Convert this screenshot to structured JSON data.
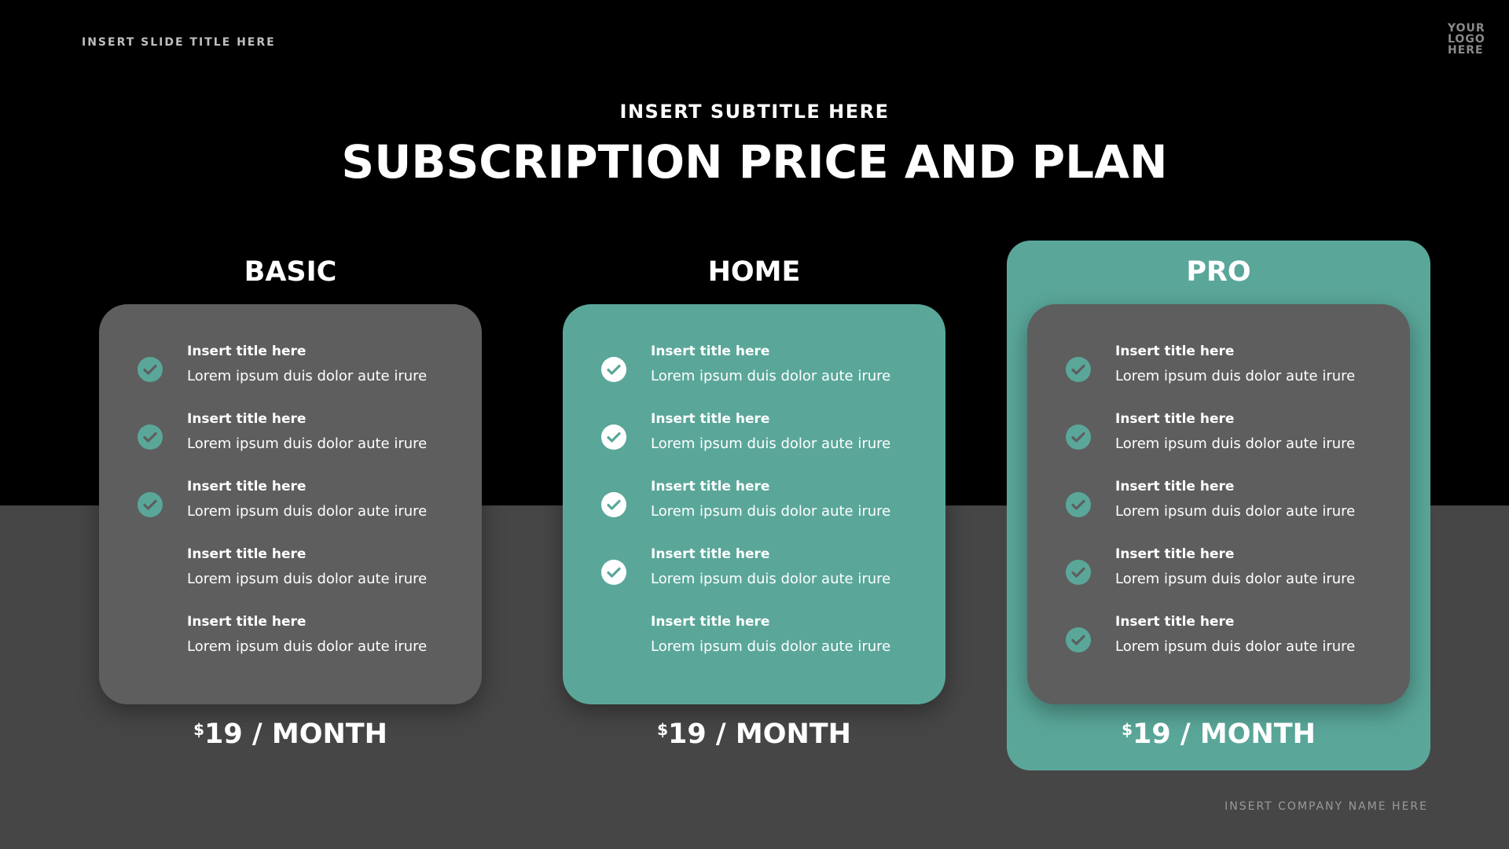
{
  "header": {
    "slide_title": "INSERT SLIDE TITLE HERE",
    "logo": "YOUR LOGO HERE",
    "subtitle": "INSERT SUBTITLE HERE",
    "title": "SUBSCRIPTION PRICE AND PLAN"
  },
  "colors": {
    "accent": "#5aa79a",
    "card_gray": "#5e5e5e",
    "bottom_bg": "#474647"
  },
  "plans": [
    {
      "name": "BASIC",
      "price_currency": "$",
      "price_text": "19 / MONTH",
      "highlighted": false,
      "features": [
        {
          "title": "Insert title here",
          "desc": "Lorem ipsum duis dolor aute irure",
          "checked": true
        },
        {
          "title": "Insert title here",
          "desc": "Lorem ipsum duis dolor aute irure",
          "checked": true
        },
        {
          "title": "Insert title here",
          "desc": "Lorem ipsum duis dolor aute irure",
          "checked": true
        },
        {
          "title": "Insert title here",
          "desc": "Lorem ipsum duis dolor aute irure",
          "checked": false
        },
        {
          "title": "Insert title here",
          "desc": "Lorem ipsum duis dolor aute irure",
          "checked": false
        }
      ]
    },
    {
      "name": "HOME",
      "price_currency": "$",
      "price_text": "19 / MONTH",
      "highlighted": false,
      "features": [
        {
          "title": "Insert title here",
          "desc": "Lorem ipsum duis dolor aute irure",
          "checked": true
        },
        {
          "title": "Insert title here",
          "desc": "Lorem ipsum duis dolor aute irure",
          "checked": true
        },
        {
          "title": "Insert title here",
          "desc": "Lorem ipsum duis dolor aute irure",
          "checked": true
        },
        {
          "title": "Insert title here",
          "desc": "Lorem ipsum duis dolor aute irure",
          "checked": true
        },
        {
          "title": "Insert title here",
          "desc": "Lorem ipsum duis dolor aute irure",
          "checked": false
        }
      ]
    },
    {
      "name": "PRO",
      "price_currency": "$",
      "price_text": "19 / MONTH",
      "highlighted": true,
      "features": [
        {
          "title": "Insert title here",
          "desc": "Lorem ipsum duis dolor aute irure",
          "checked": true
        },
        {
          "title": "Insert title here",
          "desc": "Lorem ipsum duis dolor aute irure",
          "checked": true
        },
        {
          "title": "Insert title here",
          "desc": "Lorem ipsum duis dolor aute irure",
          "checked": true
        },
        {
          "title": "Insert title here",
          "desc": "Lorem ipsum duis dolor aute irure",
          "checked": true
        },
        {
          "title": "Insert title here",
          "desc": "Lorem ipsum duis dolor aute irure",
          "checked": true
        }
      ]
    }
  ],
  "footer": {
    "company": "INSERT COMPANY NAME HERE"
  }
}
